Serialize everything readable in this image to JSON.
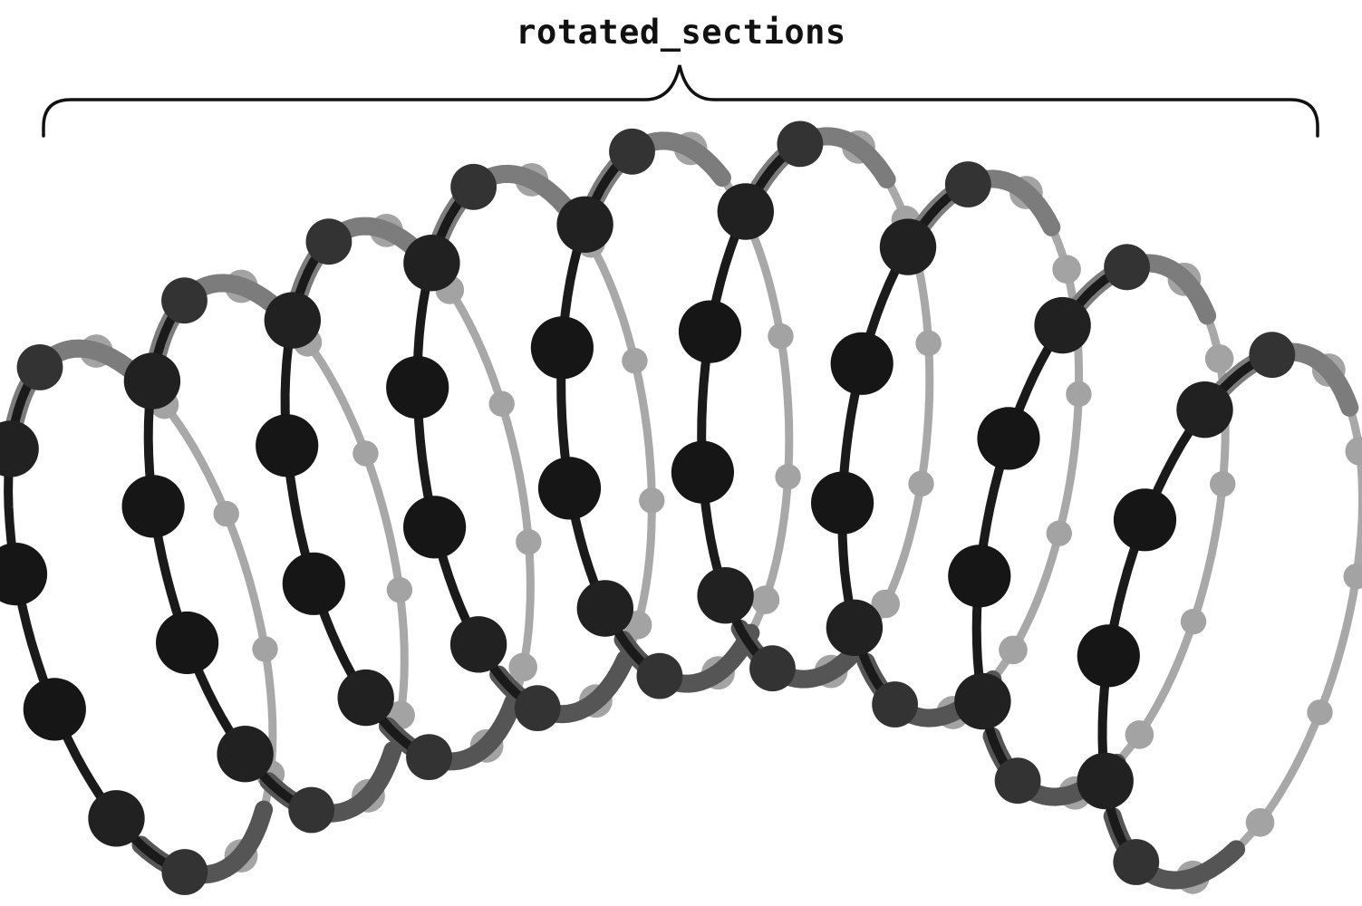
{
  "diagram": {
    "label": "rotated_sections",
    "section_count": 9,
    "beads_per_section": 12,
    "colors": {
      "front_strand": "#1a1a1a",
      "front_bead": "#151515",
      "back_strand": "#a8a8a8",
      "back_bead": "#a3a3a3",
      "brace": "#111111"
    }
  }
}
